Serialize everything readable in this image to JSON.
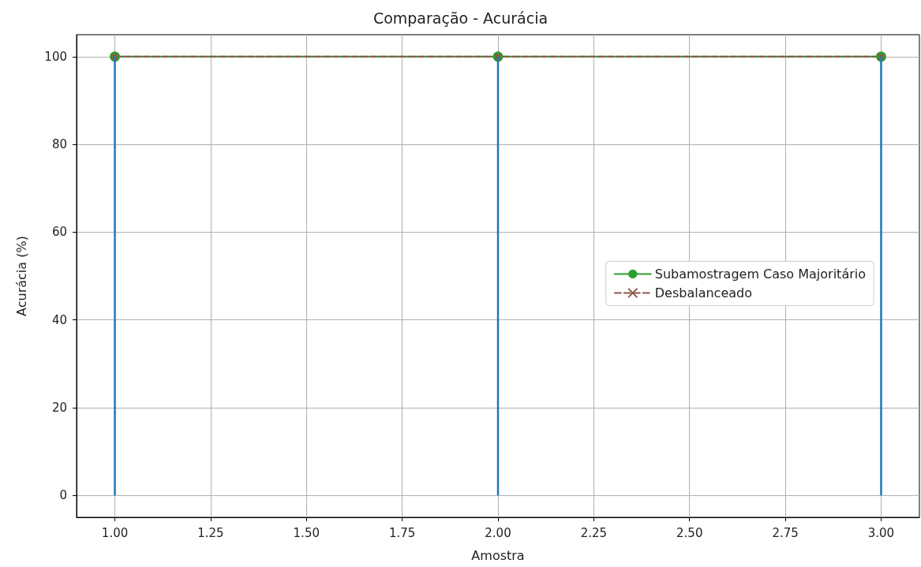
{
  "chart_data": {
    "type": "line",
    "title": "Comparação - Acurácia",
    "xlabel": "Amostra",
    "ylabel": "Acurácia (%)",
    "x": [
      1,
      2,
      3
    ],
    "series": [
      {
        "type": "bar",
        "color": "#1f77b4",
        "values": [
          100,
          100,
          100
        ]
      },
      {
        "name": "Subamostragem Caso Majoritário",
        "color": "#2ca02c",
        "marker": "circle",
        "line_style": "solid",
        "values": [
          100,
          100,
          100
        ]
      },
      {
        "name": "Desbalanceado",
        "color": "#8c564b",
        "marker": "cross",
        "line_style": "dashed",
        "values": [
          100,
          100,
          100
        ]
      }
    ],
    "xlim": [
      0.9,
      3.1
    ],
    "xticks": [
      {
        "value": 1,
        "label": "1.00"
      },
      {
        "value": 1.25,
        "label": "1.25"
      },
      {
        "value": 1.5,
        "label": "1.50"
      },
      {
        "value": 1.75,
        "label": "1.75"
      },
      {
        "value": 2,
        "label": "2.00"
      },
      {
        "value": 2.25,
        "label": "2.25"
      },
      {
        "value": 2.5,
        "label": "2.50"
      },
      {
        "value": 2.75,
        "label": "2.75"
      },
      {
        "value": 3,
        "label": "3.00"
      }
    ],
    "ylim": [
      -5,
      105
    ],
    "yticks": [
      0,
      20,
      40,
      60,
      80,
      100
    ],
    "grid": true,
    "legend": "right"
  }
}
